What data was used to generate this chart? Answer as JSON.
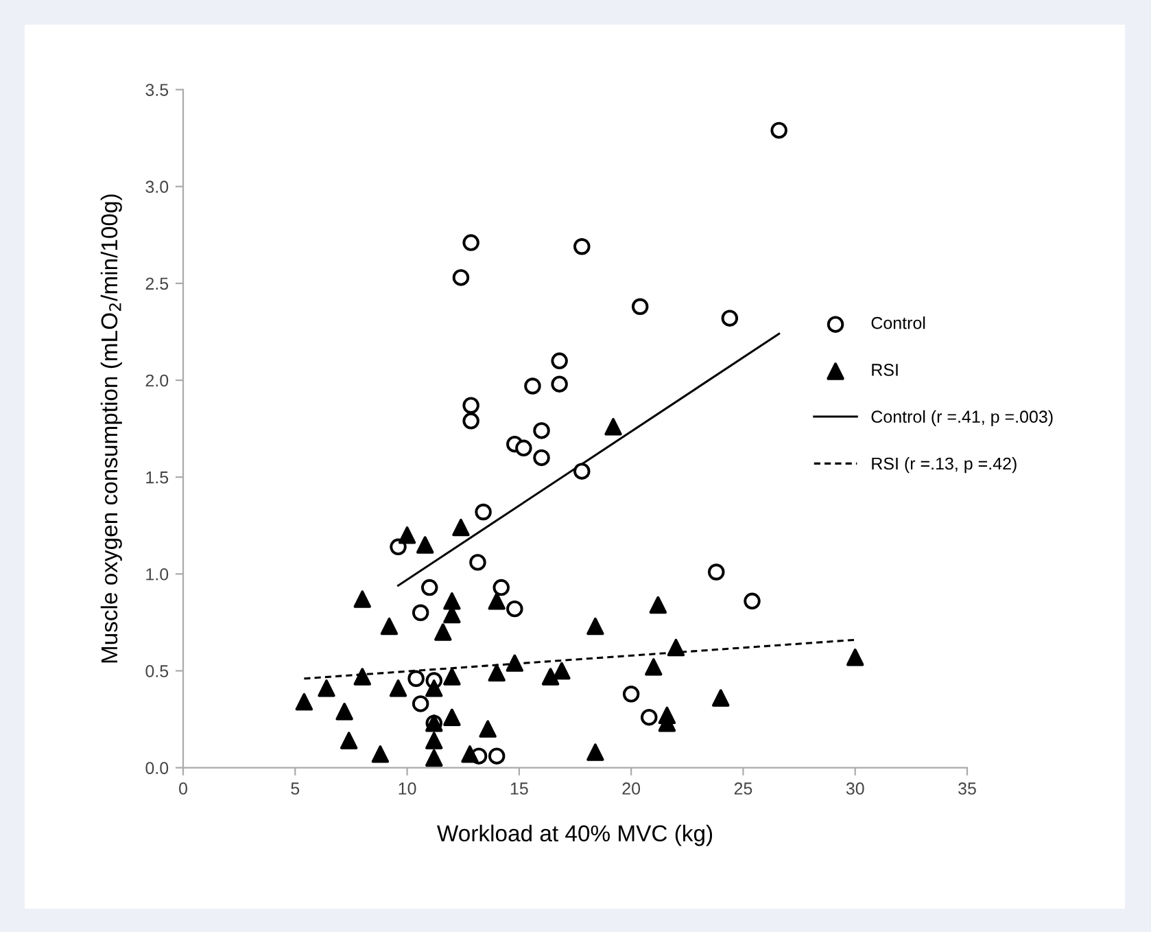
{
  "chart_data": {
    "type": "scatter",
    "xlabel": "Workload at 40% MVC (kg)",
    "ylabel": "Muscle oxygen consumption (mLO$_{2}$/min/100g)",
    "xlim": [
      0,
      35
    ],
    "xticks": [
      0,
      5,
      10,
      15,
      20,
      25,
      30,
      35
    ],
    "ylim": [
      0,
      3.5
    ],
    "yticks": [
      {
        "value": 0,
        "label": "0.0"
      },
      {
        "value": 0.5,
        "label": "0.5"
      },
      {
        "value": 1,
        "label": "1.0"
      },
      {
        "value": 1.5,
        "label": "1.5"
      },
      {
        "value": 2,
        "label": "2.0"
      },
      {
        "value": 2.5,
        "label": "2.5"
      },
      {
        "value": 3,
        "label": "3.0"
      },
      {
        "value": 3.5,
        "label": "3.5"
      }
    ],
    "grid": false,
    "legend": "right",
    "series": [
      {
        "name": "Control",
        "marker": "circle",
        "color": "#000000",
        "x": [
          12.85,
          12.4,
          15.6,
          12.85,
          12.85,
          16.0,
          14.8,
          15.2,
          16.0,
          26.6,
          17.8,
          20.4,
          24.4,
          16.8,
          16.8,
          17.8,
          13.4,
          9.6,
          13.15,
          11.0,
          14.2,
          14.8,
          10.6,
          10.4,
          11.2,
          10.6,
          11.2,
          13.2,
          14.0,
          23.8,
          25.4,
          20.0,
          20.8
        ],
        "values": [
          2.71,
          2.53,
          1.97,
          1.87,
          1.79,
          1.74,
          1.67,
          1.65,
          1.6,
          3.29,
          2.69,
          2.38,
          2.32,
          2.1,
          1.98,
          1.53,
          1.32,
          1.14,
          1.06,
          0.93,
          0.93,
          0.82,
          0.8,
          0.46,
          0.45,
          0.33,
          0.23,
          0.06,
          0.06,
          1.01,
          0.86,
          0.38,
          0.26
        ]
      },
      {
        "name": "RSI",
        "marker": "triangle",
        "color": "#000000",
        "x": [
          5.4,
          6.4,
          7.2,
          7.4,
          8.8,
          8.0,
          8.0,
          9.2,
          9.6,
          10.0,
          10.8,
          12.4,
          12.0,
          12.0,
          11.6,
          12.0,
          11.2,
          11.2,
          11.2,
          11.2,
          12.0,
          12.8,
          13.6,
          14.0,
          14.0,
          14.8,
          16.4,
          16.9,
          18.4,
          18.4,
          21.2,
          21.0,
          22.0,
          21.6,
          21.6,
          24.0,
          30.0,
          19.2
        ],
        "values": [
          0.34,
          0.41,
          0.29,
          0.14,
          0.07,
          0.87,
          0.47,
          0.73,
          0.41,
          1.2,
          1.15,
          1.24,
          0.86,
          0.79,
          0.7,
          0.47,
          0.41,
          0.23,
          0.14,
          0.05,
          0.26,
          0.07,
          0.2,
          0.86,
          0.49,
          0.54,
          0.47,
          0.5,
          0.73,
          0.08,
          0.84,
          0.52,
          0.62,
          0.27,
          0.23,
          0.36,
          0.57,
          1.76
        ]
      },
      {
        "name": "Control (r =.41, p =.003)",
        "type": "line",
        "line_style": "solid",
        "color": "#000000",
        "x": [
          9.6,
          26.6
        ],
        "values": [
          0.94,
          2.24
        ]
      },
      {
        "name": "RSI (r =.13, p =.42)",
        "type": "line",
        "line_style": "dashed",
        "color": "#000000",
        "x": [
          5.4,
          30.0
        ],
        "values": [
          0.46,
          0.66
        ]
      }
    ]
  }
}
